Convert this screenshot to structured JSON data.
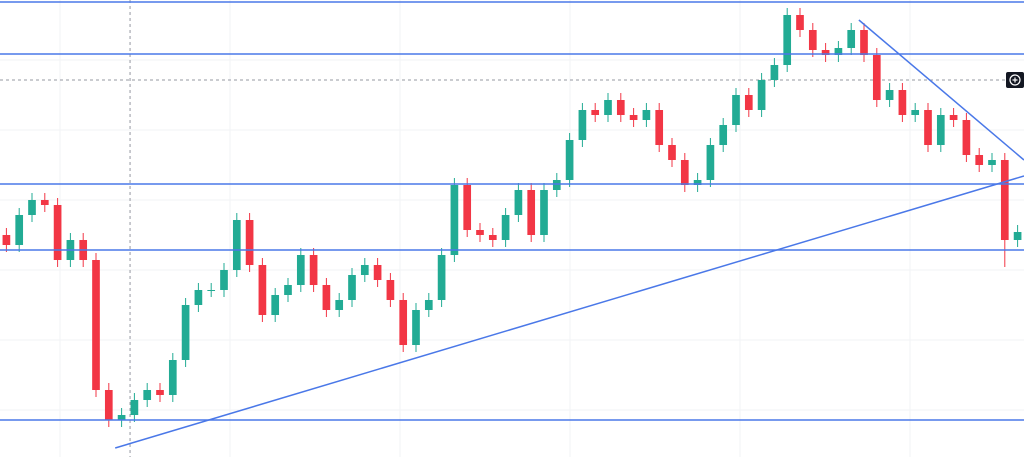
{
  "chart_data": {
    "type": "candlestick",
    "xlim": [
      -0.5,
      79.5
    ],
    "ylim": [
      0,
      457
    ],
    "up_color": "#22ab94",
    "down_color": "#f23645",
    "line_color": "#4a78e8",
    "open": [
      222,
      212,
      242,
      257,
      252,
      197,
      217,
      197,
      67,
      37,
      42,
      57,
      67,
      62,
      97,
      152,
      167,
      167,
      187,
      237,
      192,
      142,
      162,
      172,
      202,
      172,
      147,
      157,
      182,
      192,
      177,
      157,
      112,
      147,
      157,
      202,
      272,
      227,
      222,
      217,
      242,
      267,
      222,
      267,
      277,
      317,
      347,
      342,
      357,
      342,
      337,
      347,
      312,
      297,
      272,
      277,
      312,
      332,
      362,
      347,
      377,
      392,
      442,
      427,
      407,
      402,
      409,
      427,
      402,
      357,
      367,
      342,
      347,
      312,
      342,
      337,
      302,
      292,
      297,
      217
    ],
    "high": [
      229,
      249,
      264,
      264,
      259,
      224,
      224,
      204,
      74,
      49,
      64,
      74,
      74,
      104,
      159,
      174,
      174,
      194,
      244,
      244,
      199,
      169,
      179,
      209,
      209,
      179,
      164,
      189,
      199,
      199,
      184,
      164,
      154,
      164,
      209,
      279,
      279,
      234,
      229,
      249,
      274,
      274,
      274,
      284,
      324,
      354,
      354,
      364,
      364,
      349,
      354,
      354,
      319,
      304,
      284,
      319,
      339,
      369,
      369,
      384,
      399,
      449,
      449,
      434,
      414,
      416,
      434,
      434,
      409,
      374,
      374,
      354,
      354,
      349,
      349,
      344,
      309,
      304,
      304,
      232
    ],
    "low": [
      205,
      205,
      235,
      245,
      190,
      190,
      190,
      60,
      30,
      30,
      35,
      50,
      55,
      55,
      90,
      145,
      160,
      160,
      180,
      185,
      135,
      135,
      155,
      165,
      165,
      140,
      140,
      150,
      175,
      170,
      150,
      105,
      105,
      140,
      150,
      195,
      220,
      215,
      210,
      210,
      235,
      215,
      215,
      260,
      270,
      310,
      335,
      335,
      335,
      330,
      330,
      305,
      290,
      265,
      265,
      270,
      305,
      325,
      340,
      340,
      370,
      385,
      420,
      400,
      395,
      395,
      402,
      395,
      350,
      350,
      335,
      335,
      305,
      305,
      330,
      295,
      285,
      285,
      190,
      210
    ],
    "close": [
      212,
      242,
      257,
      252,
      197,
      217,
      197,
      67,
      37,
      42,
      57,
      67,
      62,
      97,
      152,
      167,
      167,
      187,
      237,
      192,
      142,
      162,
      172,
      202,
      172,
      147,
      157,
      182,
      192,
      177,
      157,
      112,
      147,
      157,
      202,
      272,
      227,
      222,
      217,
      242,
      267,
      222,
      267,
      277,
      317,
      347,
      342,
      357,
      342,
      337,
      347,
      312,
      297,
      272,
      277,
      312,
      332,
      362,
      347,
      377,
      392,
      442,
      427,
      407,
      402,
      409,
      427,
      402,
      357,
      367,
      342,
      347,
      312,
      342,
      337,
      302,
      292,
      297,
      217,
      225
    ],
    "levels": [
      455,
      403,
      273,
      207,
      37
    ],
    "trendlines": [
      {
        "x": [
          8.5,
          79.5
        ],
        "y": [
          9,
          281
        ]
      },
      {
        "x": [
          66.6,
          79.5
        ],
        "y": [
          437,
          297
        ]
      }
    ],
    "crosshair": {
      "x": 9.66,
      "y": 377
    }
  }
}
